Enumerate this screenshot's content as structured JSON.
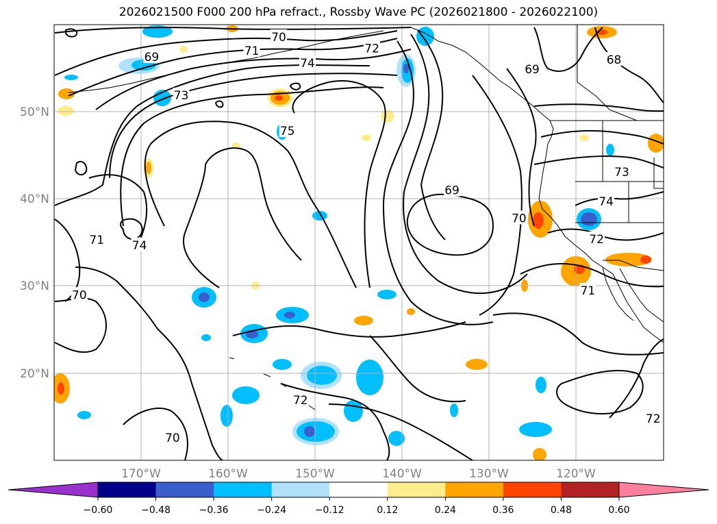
{
  "title": "2026021500 F000 200 hPa refract., Rossby Wave PC (2026021800 - 2026022100)",
  "map": {
    "lat_labels": [
      "50°N",
      "40°N",
      "30°N",
      "20°N"
    ],
    "lon_labels": [
      "170°W",
      "160°W",
      "150°W",
      "140°W",
      "130°W",
      "120°W"
    ],
    "contour_labels": [
      {
        "text": "69",
        "lon": -168.8,
        "lat": 56.3
      },
      {
        "text": "70",
        "lon": -154.2,
        "lat": 58.6
      },
      {
        "text": "71",
        "lon": -157.3,
        "lat": 57.0
      },
      {
        "text": "72",
        "lon": -143.5,
        "lat": 57.3
      },
      {
        "text": "74",
        "lon": -150.9,
        "lat": 55.6
      },
      {
        "text": "73",
        "lon": -165.4,
        "lat": 51.9
      },
      {
        "text": "75",
        "lon": -153.2,
        "lat": 47.8
      },
      {
        "text": "69",
        "lon": -134.3,
        "lat": 41.0
      },
      {
        "text": "70",
        "lon": -126.6,
        "lat": 37.8
      },
      {
        "text": "68",
        "lon": -115.7,
        "lat": 56.0
      },
      {
        "text": "69",
        "lon": -125.1,
        "lat": 54.9
      },
      {
        "text": "73",
        "lon": -114.8,
        "lat": 43.1
      },
      {
        "text": "74",
        "lon": -116.6,
        "lat": 39.7
      },
      {
        "text": "72",
        "lon": -117.7,
        "lat": 35.4
      },
      {
        "text": "71",
        "lon": -118.7,
        "lat": 29.5
      },
      {
        "text": "71",
        "lon": -175.1,
        "lat": 35.3
      },
      {
        "text": "74",
        "lon": -170.2,
        "lat": 34.7
      },
      {
        "text": "70",
        "lon": -177.1,
        "lat": 29.0
      },
      {
        "text": "72",
        "lon": -151.7,
        "lat": 16.9
      },
      {
        "text": "70",
        "lon": -166.4,
        "lat": 12.6
      },
      {
        "text": "72",
        "lon": -111.2,
        "lat": 14.8
      }
    ],
    "colors": {
      "neg_dark": "#00008b",
      "neg_mid": "#3a5fcd",
      "neg_cyan": "#00bfff",
      "neg_light": "#b0e2ff",
      "pos_light": "#ffec8b",
      "pos_orange": "#ffa500",
      "pos_red": "#ff4500",
      "pos_dark": "#b22222",
      "pos_pink": "#ff7f9f",
      "neg_purple": "#9932cc"
    }
  },
  "colorbar": {
    "tick_labels": [
      "−0.60",
      "−0.48",
      "−0.36",
      "−0.24",
      "−0.12",
      "0.12",
      "0.24",
      "0.36",
      "0.48",
      "0.60"
    ],
    "colors": [
      "#9932cc",
      "#00008b",
      "#3a5fcd",
      "#00bfff",
      "#b0e2ff",
      "#ffffff",
      "#ffec8b",
      "#ffa500",
      "#ff4500",
      "#b22222",
      "#ff7f9f"
    ]
  }
}
